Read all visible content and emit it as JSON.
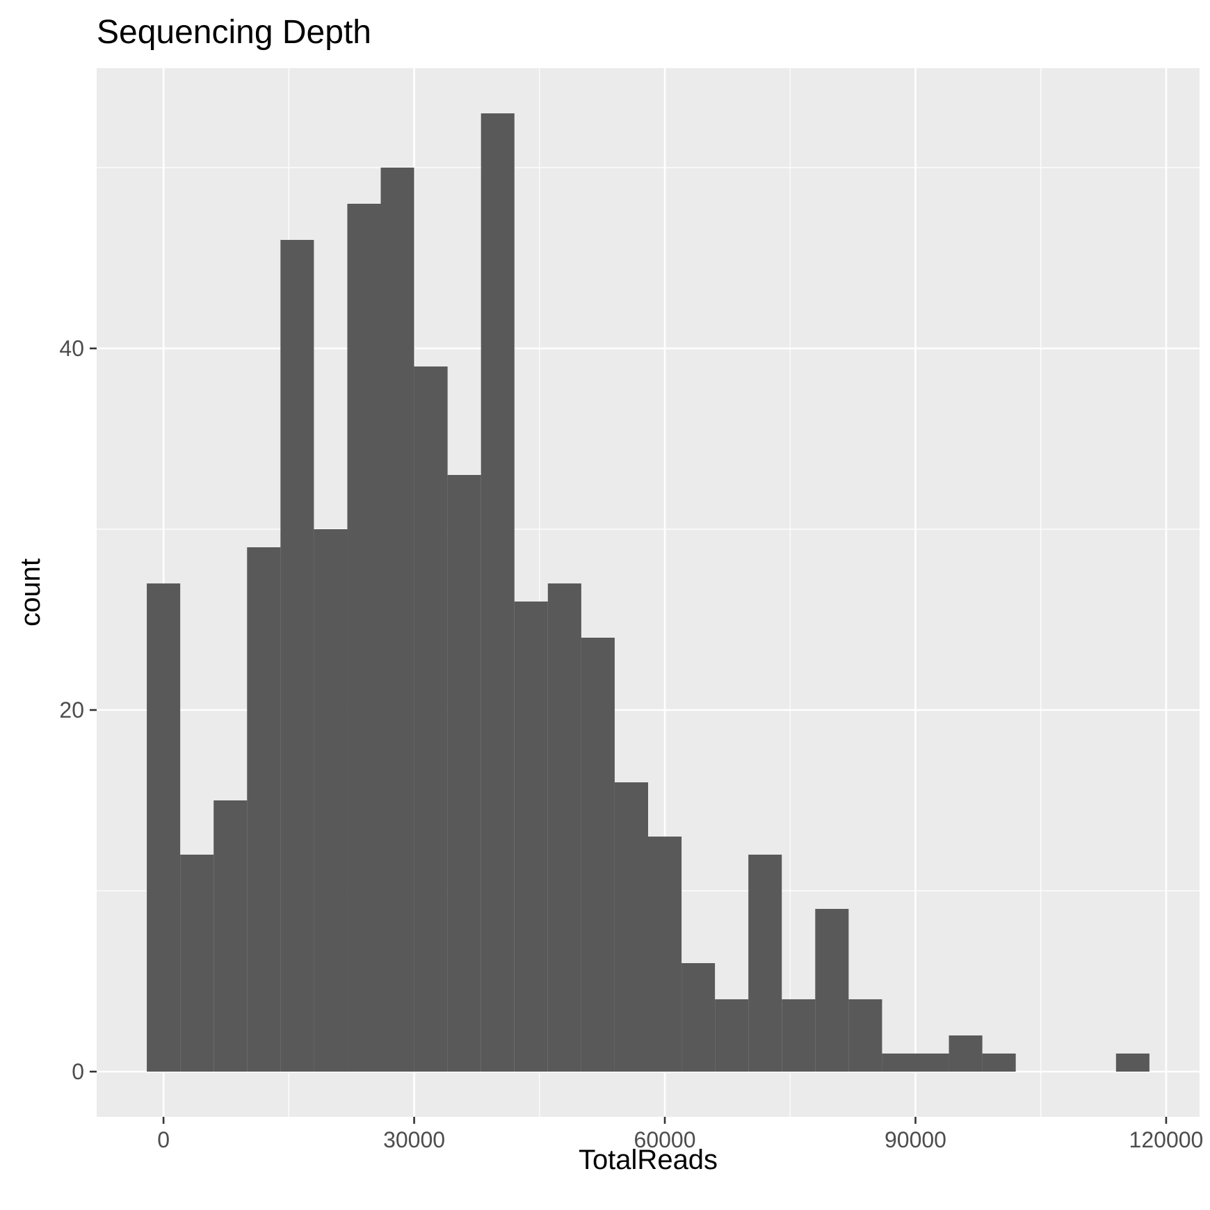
{
  "chart_data": {
    "type": "bar",
    "title": "Sequencing Depth",
    "xlabel": "TotalReads",
    "ylabel": "count",
    "x_ticks": [
      0,
      30000,
      60000,
      90000,
      120000
    ],
    "y_ticks": [
      0,
      20,
      40
    ],
    "xlim": [
      -8000,
      124000
    ],
    "ylim": [
      -2.5,
      55.5
    ],
    "grid": true,
    "legend": "none",
    "colors": {
      "panel": "#ebebeb",
      "bar": "#595959",
      "grid": "#ffffff",
      "tick": "#333333"
    },
    "bins": [
      {
        "x0": -2000,
        "x1": 2000,
        "count": 27
      },
      {
        "x0": 2000,
        "x1": 6000,
        "count": 12
      },
      {
        "x0": 6000,
        "x1": 10000,
        "count": 15
      },
      {
        "x0": 10000,
        "x1": 14000,
        "count": 29
      },
      {
        "x0": 14000,
        "x1": 18000,
        "count": 46
      },
      {
        "x0": 18000,
        "x1": 22000,
        "count": 30
      },
      {
        "x0": 22000,
        "x1": 26000,
        "count": 48
      },
      {
        "x0": 26000,
        "x1": 30000,
        "count": 50
      },
      {
        "x0": 30000,
        "x1": 34000,
        "count": 39
      },
      {
        "x0": 34000,
        "x1": 38000,
        "count": 33
      },
      {
        "x0": 38000,
        "x1": 42000,
        "count": 53
      },
      {
        "x0": 42000,
        "x1": 46000,
        "count": 26
      },
      {
        "x0": 46000,
        "x1": 50000,
        "count": 27
      },
      {
        "x0": 50000,
        "x1": 54000,
        "count": 24
      },
      {
        "x0": 54000,
        "x1": 58000,
        "count": 16
      },
      {
        "x0": 58000,
        "x1": 62000,
        "count": 13
      },
      {
        "x0": 62000,
        "x1": 66000,
        "count": 6
      },
      {
        "x0": 66000,
        "x1": 70000,
        "count": 4
      },
      {
        "x0": 70000,
        "x1": 74000,
        "count": 12
      },
      {
        "x0": 74000,
        "x1": 78000,
        "count": 4
      },
      {
        "x0": 78000,
        "x1": 82000,
        "count": 9
      },
      {
        "x0": 82000,
        "x1": 86000,
        "count": 4
      },
      {
        "x0": 86000,
        "x1": 90000,
        "count": 1
      },
      {
        "x0": 90000,
        "x1": 94000,
        "count": 1
      },
      {
        "x0": 94000,
        "x1": 98000,
        "count": 2
      },
      {
        "x0": 98000,
        "x1": 102000,
        "count": 1
      },
      {
        "x0": 114000,
        "x1": 118000,
        "count": 1
      }
    ]
  }
}
